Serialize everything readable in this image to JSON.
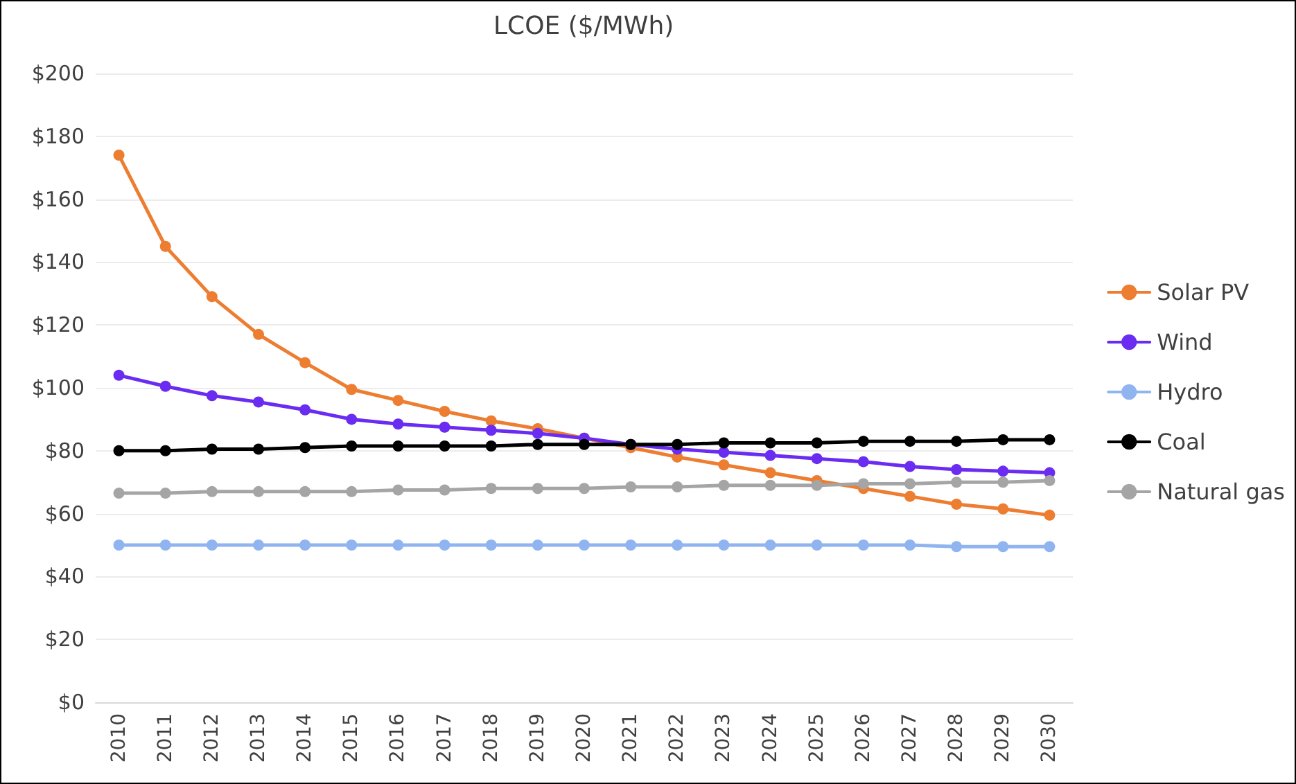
{
  "chart_data": {
    "type": "line",
    "title": "LCOE ($/MWh)",
    "categories": [
      "2010",
      "2011",
      "2012",
      "2013",
      "2014",
      "2015",
      "2016",
      "2017",
      "2018",
      "2019",
      "2020",
      "2021",
      "2022",
      "2023",
      "2024",
      "2025",
      "2026",
      "2027",
      "2028",
      "2029",
      "2030"
    ],
    "series": [
      {
        "name": "Solar PV",
        "color": "#ed7d31",
        "values": [
          174,
          145,
          129,
          117,
          108,
          99.5,
          96,
          92.5,
          89.5,
          87,
          84,
          81,
          78,
          75.5,
          73,
          70.5,
          68,
          65.5,
          63,
          61.5,
          59.5
        ]
      },
      {
        "name": "Wind",
        "color": "#6a2cf0",
        "values": [
          104,
          100.5,
          97.5,
          95.5,
          93,
          90,
          88.5,
          87.5,
          86.5,
          85.5,
          84,
          82,
          80.5,
          79.5,
          78.5,
          77.5,
          76.5,
          75,
          74,
          73.5,
          73
        ]
      },
      {
        "name": "Hydro",
        "color": "#8fb4f0",
        "values": [
          50,
          50,
          50,
          50,
          50,
          50,
          50,
          50,
          50,
          50,
          50,
          50,
          50,
          50,
          50,
          50,
          50,
          50,
          49.5,
          49.5,
          49.5
        ]
      },
      {
        "name": "Coal",
        "color": "#000000",
        "values": [
          80,
          80,
          80.5,
          80.5,
          81,
          81.5,
          81.5,
          81.5,
          81.5,
          82,
          82,
          82,
          82,
          82.5,
          82.5,
          82.5,
          83,
          83,
          83,
          83.5,
          83.5
        ]
      },
      {
        "name": "Natural gas",
        "color": "#a5a5a5",
        "values": [
          66.5,
          66.5,
          67,
          67,
          67,
          67,
          67.5,
          67.5,
          68,
          68,
          68,
          68.5,
          68.5,
          69,
          69,
          69,
          69.5,
          69.5,
          70,
          70,
          70.5
        ]
      }
    ],
    "ylim": [
      0,
      200
    ],
    "yticks": [
      {
        "value": 0,
        "label": "$0"
      },
      {
        "value": 20,
        "label": "$20"
      },
      {
        "value": 40,
        "label": "$40"
      },
      {
        "value": 60,
        "label": "$60"
      },
      {
        "value": 80,
        "label": "$80"
      },
      {
        "value": 100,
        "label": "$100"
      },
      {
        "value": 120,
        "label": "$120"
      },
      {
        "value": 140,
        "label": "$140"
      },
      {
        "value": 160,
        "label": "$160"
      },
      {
        "value": 180,
        "label": "$180"
      },
      {
        "value": 200,
        "label": "$200"
      }
    ],
    "grid": "y",
    "legend": "right",
    "marker": "circle",
    "line_style": "solid"
  }
}
